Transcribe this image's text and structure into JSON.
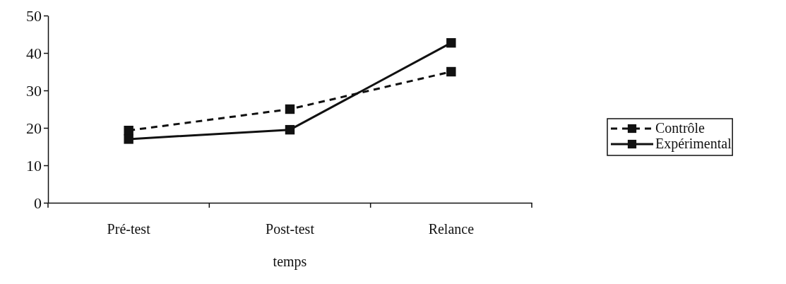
{
  "chart_data": {
    "type": "line",
    "xlabel": "temps",
    "categories": [
      "Pré-test",
      "Post-test",
      "Relance"
    ],
    "series": [
      {
        "name": "Contrôle",
        "color": "#111111",
        "line_style": "dashed",
        "values": [
          19.3,
          25,
          35
        ]
      },
      {
        "name": "Expérimental",
        "color": "#111111",
        "line_style": "solid",
        "values": [
          17,
          19.5,
          42.7
        ]
      }
    ],
    "ylim": [
      0,
      50
    ],
    "yticks": [
      0,
      10,
      20,
      30,
      40,
      50
    ],
    "marker": "square",
    "legend": "right",
    "grid": false
  }
}
